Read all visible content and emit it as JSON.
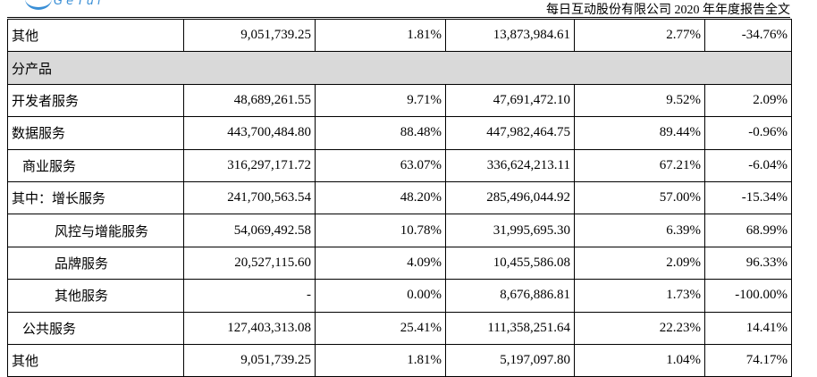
{
  "header": {
    "logo": "GeTui",
    "title": "每日互动股份有限公司 2020 年年度报告全文"
  },
  "table": {
    "rows": [
      [
        "其他",
        "9,051,739.25",
        "1.81%",
        "13,873,984.61",
        "2.77%",
        "-34.76%"
      ],
      [
        "分产品"
      ],
      [
        "开发者服务",
        "48,689,261.55",
        "9.71%",
        "47,691,472.10",
        "9.52%",
        "2.09%"
      ],
      [
        "数据服务",
        "443,700,484.80",
        "88.48%",
        "447,982,464.75",
        "89.44%",
        "-0.96%"
      ],
      [
        "商业服务",
        "316,297,171.72",
        "63.07%",
        "336,624,213.11",
        "67.21%",
        "-6.04%"
      ],
      [
        "其中：增长服务",
        "241,700,563.54",
        "48.20%",
        "285,496,044.92",
        "57.00%",
        "-15.34%"
      ],
      [
        "风控与增能服务",
        "54,069,492.58",
        "10.78%",
        "31,995,695.30",
        "6.39%",
        "68.99%"
      ],
      [
        "品牌服务",
        "20,527,115.60",
        "4.09%",
        "10,455,586.08",
        "2.09%",
        "96.33%"
      ],
      [
        "其他服务",
        "-",
        "0.00%",
        "8,676,886.81",
        "1.73%",
        "-100.00%"
      ],
      [
        "公共服务",
        "127,403,313.08",
        "25.41%",
        "111,358,251.64",
        "22.23%",
        "14.41%"
      ],
      [
        "其他",
        "9,051,739.25",
        "1.81%",
        "5,197,097.80",
        "1.04%",
        "74.17%"
      ]
    ]
  }
}
